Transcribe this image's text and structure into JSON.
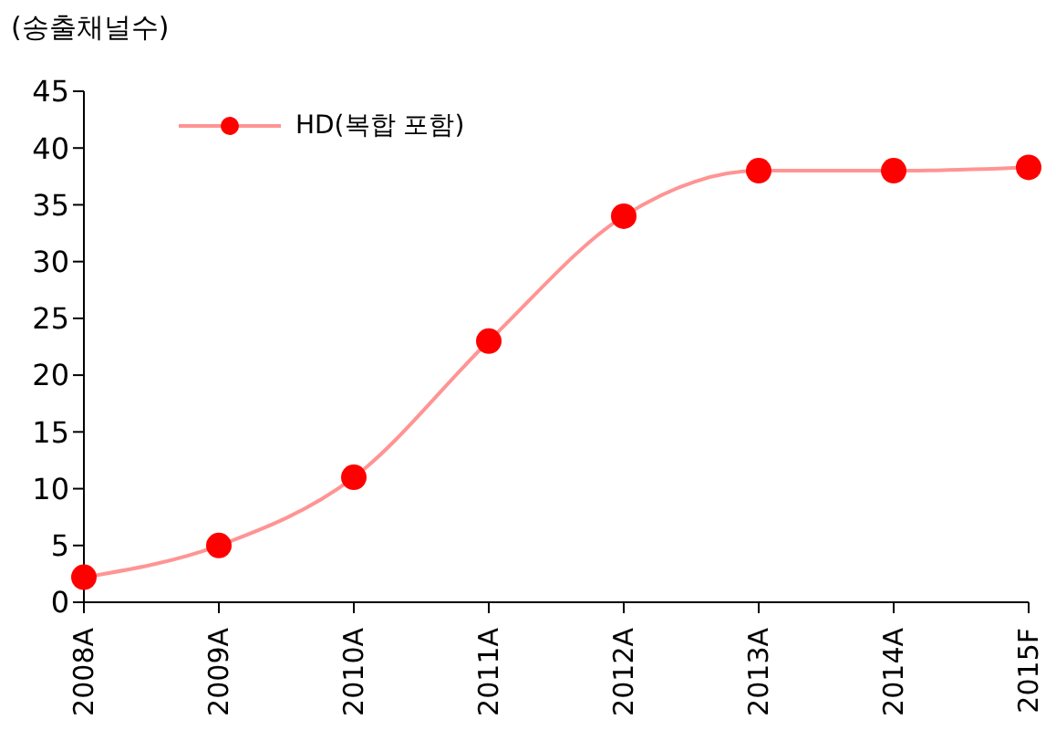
{
  "chart_data": {
    "type": "line",
    "ylabel": "(송출채널수)",
    "categories": [
      "2008A",
      "2009A",
      "2010A",
      "2011A",
      "2012A",
      "2013A",
      "2014A",
      "2015F"
    ],
    "series": [
      {
        "name": "HD(복합 포함)",
        "color": "#ff0000",
        "values": [
          2.2,
          5,
          11,
          23,
          34,
          38,
          38,
          38.3
        ]
      }
    ],
    "ylim": [
      0,
      45
    ],
    "yticks": [
      0,
      5,
      10,
      15,
      20,
      25,
      30,
      35,
      40,
      45
    ],
    "grid": false,
    "legend": "top left",
    "marker": "circle",
    "line_style": "solid"
  }
}
